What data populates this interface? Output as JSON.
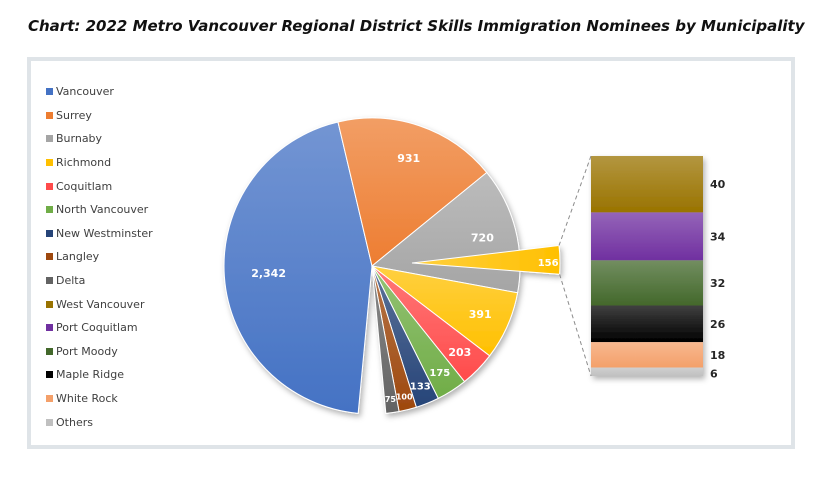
{
  "title": "Chart: 2022 Metro Vancouver Regional District Skills Immigration Nominees by Municipality",
  "chart_data": {
    "type": "pie",
    "subtype": "bar-of-pie",
    "slices": [
      {
        "name": "Vancouver",
        "value": 2342,
        "label": "2,342",
        "color": "#4472c4"
      },
      {
        "name": "Surrey",
        "value": 931,
        "label": "931",
        "color": "#ed7d31"
      },
      {
        "name": "Burnaby",
        "value": 720,
        "label": "720",
        "color": "#a5a5a5"
      },
      {
        "name": "Richmond",
        "value": 391,
        "label": "391",
        "color": "#ffc000"
      },
      {
        "name": "Coquitlam",
        "value": 203,
        "label": "203",
        "color": "#ff4b4b"
      },
      {
        "name": "North Vancouver",
        "value": 175,
        "label": "175",
        "color": "#70ad47"
      },
      {
        "name": "New Westminster",
        "value": 133,
        "label": "133",
        "color": "#264478"
      },
      {
        "name": "Langley",
        "value": 100,
        "label": "100",
        "color": "#9e480e"
      },
      {
        "name": "Delta",
        "value": 75,
        "label": "75",
        "color": "#636363"
      }
    ],
    "other_slice": {
      "value": 156,
      "label": "156",
      "color": "#ffc000"
    },
    "breakdown": [
      {
        "name": "West Vancouver",
        "value": 40,
        "label": "40",
        "color": "#997300"
      },
      {
        "name": "Port Coquitlam",
        "value": 34,
        "label": "34",
        "color": "#7030a0"
      },
      {
        "name": "Port Moody",
        "value": 32,
        "label": "32",
        "color": "#43682b"
      },
      {
        "name": "Maple Ridge",
        "value": 26,
        "label": "26",
        "color": "#000000"
      },
      {
        "name": "White Rock",
        "value": 18,
        "label": "18",
        "color": "#f4a06a"
      },
      {
        "name": "Others",
        "value": 6,
        "label": "6",
        "color": "#c0c0c0"
      }
    ],
    "legend": [
      "Vancouver",
      "Surrey",
      "Burnaby",
      "Richmond",
      "Coquitlam",
      "North Vancouver",
      "New Westminster",
      "Langley",
      "Delta",
      "West Vancouver",
      "Port Coquitlam",
      "Port Moody",
      "Maple Ridge",
      "White Rock",
      "Others"
    ],
    "legend_position": "left"
  }
}
